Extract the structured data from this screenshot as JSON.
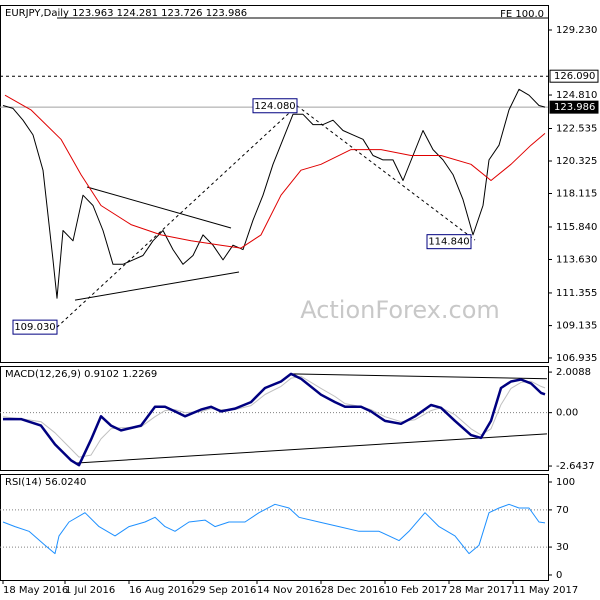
{
  "chart_data": [
    {
      "type": "line",
      "title": "EURJPY,Daily  123.963 124.281 123.726 123.986",
      "watermark": "ActionForex.com",
      "xlim": [
        0,
        271
      ],
      "ylim": [
        106.66,
        130.93
      ],
      "yticks": [
        {
          "value": 129.23,
          "label": "129.230"
        },
        {
          "value": 124.81,
          "label": "124.810"
        },
        122.535,
        {
          "value": 120.325,
          "label": "120.325"
        },
        {
          "value": 118.115,
          "label": "118.115"
        },
        {
          "value": 115.84,
          "label": "115.840"
        },
        {
          "value": 113.63,
          "label": "113.630"
        },
        111.355,
        109.135,
        106.935
      ],
      "series": [
        {
          "color": "#000000",
          "x": [
            0,
            5,
            10,
            15,
            20,
            25,
            27,
            30,
            35,
            40,
            45,
            50,
            55,
            60,
            65,
            70,
            75,
            80,
            85,
            90,
            95,
            100,
            105,
            110,
            115,
            120,
            125,
            130,
            135,
            140,
            145,
            150,
            155,
            160,
            165,
            170,
            175,
            180,
            185,
            190,
            195,
            200,
            205,
            210,
            215,
            220,
            225,
            230,
            235,
            240,
            243,
            248,
            253,
            258,
            263,
            268,
            271
          ],
          "values": [
            124.1,
            123.9,
            123.1,
            122.1,
            119.7,
            113.6,
            111.0,
            115.6,
            114.9,
            118.0,
            117.3,
            115.6,
            113.3,
            113.3,
            113.6,
            113.9,
            114.9,
            115.6,
            114.3,
            113.3,
            113.9,
            115.3,
            114.6,
            113.6,
            114.6,
            114.3,
            116.3,
            118.0,
            120.1,
            121.8,
            123.5,
            123.5,
            122.8,
            122.8,
            123.1,
            122.4,
            122.1,
            121.8,
            120.7,
            120.4,
            120.4,
            119.0,
            120.7,
            122.4,
            121.1,
            120.4,
            119.4,
            117.7,
            115.3,
            117.3,
            120.4,
            121.4,
            123.8,
            125.2,
            124.8,
            124.1,
            123.986
          ]
        },
        {
          "color": "#e00000",
          "x": [
            1,
            14,
            29,
            39,
            49,
            64,
            79,
            94,
            109,
            119,
            129,
            139,
            149,
            159,
            174,
            189,
            204,
            219,
            234,
            244,
            254,
            264,
            271
          ],
          "values": [
            124.8,
            123.8,
            121.8,
            119.4,
            117.3,
            116.0,
            115.3,
            114.9,
            114.6,
            114.4,
            115.3,
            118.0,
            119.7,
            120.1,
            121.1,
            121.1,
            120.7,
            120.7,
            120.1,
            119.0,
            120.1,
            121.4,
            122.2
          ]
        }
      ],
      "price_lines": [
        {
          "label": "126.090",
          "value": 126.09,
          "style": "dashed"
        },
        {
          "label": "123.986",
          "value": 123.986,
          "style": "solid"
        }
      ],
      "fe_level": {
        "label": "FE 100.0",
        "value": 130.05,
        "x": 27
      },
      "point_labels": [
        {
          "label": "124.080",
          "x": 147,
          "value": 124.08
        },
        {
          "label": "114.840",
          "x": 234,
          "value": 114.84
        },
        {
          "label": "109.030",
          "x": 27,
          "value": 109.03
        }
      ],
      "trendlines": [
        {
          "x": [
            42,
            114
          ],
          "values": [
            118.56,
            115.77
          ],
          "style": "solid"
        },
        {
          "x": [
            36,
            118
          ],
          "values": [
            110.87,
            112.78
          ],
          "style": "solid"
        },
        {
          "x": [
            27,
            147
          ],
          "values": [
            109.03,
            124.08
          ],
          "style": "dashed"
        },
        {
          "x": [
            147,
            236
          ],
          "values": [
            124.08,
            114.95
          ],
          "style": "dashed"
        }
      ]
    },
    {
      "type": "line",
      "title": "MACD(12,26,9) 0.9102 1.2269",
      "xlim": [
        0,
        271
      ],
      "ylim": [
        -2.84,
        2.31
      ],
      "yticks": [
        2.0088,
        {
          "value": 0,
          "label": "0.00"
        },
        -2.6437
      ],
      "levels": [
        0
      ],
      "series": [
        {
          "color": "#c0c0c0",
          "width": 1,
          "x": [
            0,
            9,
            19,
            26,
            34,
            38,
            44,
            49,
            54,
            59,
            69,
            76,
            81,
            86,
            91,
            99,
            104,
            109,
            116,
            124,
            131,
            139,
            144,
            149,
            159,
            166,
            171,
            179,
            184,
            191,
            199,
            206,
            214,
            219,
            226,
            234,
            239,
            244,
            249,
            254,
            259,
            264,
            269,
            271
          ],
          "values": [
            -0.2,
            -0.3,
            -0.45,
            -1.0,
            -1.8,
            -2.2,
            -2.1,
            -1.3,
            -0.8,
            -0.75,
            -0.7,
            -0.2,
            0.1,
            0.15,
            0.0,
            0.05,
            0.2,
            0.15,
            0.15,
            0.35,
            0.9,
            1.3,
            1.7,
            1.8,
            1.2,
            0.8,
            0.45,
            0.3,
            0.15,
            -0.2,
            -0.45,
            -0.35,
            0.1,
            0.25,
            -0.1,
            -0.8,
            -1.1,
            -0.8,
            0.4,
            1.2,
            1.5,
            1.55,
            1.3,
            1.2269
          ]
        },
        {
          "color": "#000080",
          "width": 2.5,
          "x": [
            0,
            9,
            19,
            26,
            34,
            38,
            44,
            49,
            54,
            59,
            69,
            76,
            81,
            86,
            91,
            99,
            104,
            109,
            116,
            124,
            131,
            139,
            144,
            149,
            159,
            166,
            171,
            179,
            184,
            191,
            199,
            206,
            214,
            219,
            226,
            234,
            239,
            244,
            249,
            254,
            259,
            264,
            269,
            271
          ],
          "values": [
            -0.32,
            -0.32,
            -0.64,
            -1.57,
            -2.36,
            -2.6,
            -1.34,
            -0.18,
            -0.64,
            -0.88,
            -0.64,
            0.29,
            0.29,
            0.06,
            -0.18,
            0.15,
            0.29,
            0.06,
            0.2,
            0.52,
            1.22,
            1.54,
            1.92,
            1.68,
            0.89,
            0.52,
            0.29,
            0.29,
            0.06,
            -0.41,
            -0.55,
            -0.18,
            0.38,
            0.24,
            -0.41,
            -1.11,
            -1.25,
            -0.41,
            1.22,
            1.54,
            1.64,
            1.45,
            0.98,
            0.9102
          ]
        }
      ],
      "trendlines": [
        {
          "x": [
            144,
            272
          ],
          "values": [
            1.92,
            1.68
          ],
          "style": "solid"
        },
        {
          "x": [
            36,
            272
          ],
          "values": [
            -2.5,
            -1.05
          ],
          "style": "solid"
        }
      ]
    },
    {
      "type": "line",
      "title": "RSI(14) 56.0240",
      "xlim": [
        0,
        271
      ],
      "ylim": [
        -5.4,
        108.6
      ],
      "yticks": [
        100,
        70,
        30,
        0
      ],
      "levels": [
        70,
        30
      ],
      "xticks": [
        {
          "value": 0,
          "label": "18 May 2016"
        },
        {
          "value": 31,
          "label": "1 Jul 2016"
        },
        {
          "value": 63,
          "label": "16 Aug 2016"
        },
        {
          "value": 95,
          "label": "29 Sep 2016"
        },
        {
          "value": 127,
          "label": "14 Nov 2016"
        },
        {
          "value": 159,
          "label": "28 Dec 2016"
        },
        {
          "value": 191,
          "label": "10 Feb 2017"
        },
        {
          "value": 223,
          "label": "28 Mar 2017"
        },
        {
          "value": 255,
          "label": "11 May 2017"
        }
      ],
      "series": [
        {
          "color": "#1e90ff",
          "width": 1,
          "x": [
            0,
            6,
            13,
            21,
            26,
            28,
            33,
            41,
            48,
            56,
            63,
            71,
            76,
            81,
            86,
            93,
            101,
            106,
            113,
            121,
            128,
            136,
            143,
            148,
            158,
            168,
            178,
            188,
            198,
            203,
            211,
            218,
            226,
            233,
            238,
            243,
            248,
            253,
            258,
            263,
            268,
            271
          ],
          "values": [
            57,
            52,
            47,
            32,
            23,
            42,
            57,
            67,
            52,
            42,
            52,
            57,
            62,
            52,
            47,
            57,
            59,
            52,
            57,
            57,
            67,
            76,
            72,
            62,
            57,
            52,
            47,
            47,
            37,
            47,
            67,
            52,
            42,
            23,
            32,
            67,
            72,
            76,
            72,
            72,
            57,
            56.024
          ]
        }
      ]
    }
  ]
}
